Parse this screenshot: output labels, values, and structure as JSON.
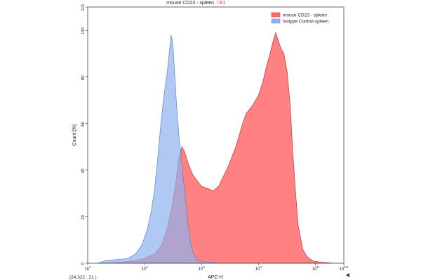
{
  "chart_data": {
    "type": "area",
    "title": "mouse CD23 - spleen",
    "title_suffix": "/ E1",
    "xlabel": "APC-H",
    "ylabel": "Count [%]",
    "x_scale": "log10",
    "xlim": [
      10,
      316228
    ],
    "ylim": [
      0,
      110
    ],
    "grid": false,
    "legend_position": "top-right",
    "x_ticks": [
      {
        "value": 10,
        "base": "10",
        "exp": "1"
      },
      {
        "value": 100,
        "base": "10",
        "exp": "2"
      },
      {
        "value": 1000,
        "base": "10",
        "exp": "3"
      },
      {
        "value": 10000,
        "base": "10",
        "exp": "4"
      },
      {
        "value": 100000,
        "base": "10",
        "exp": "5"
      },
      {
        "value": 316228,
        "base": "10",
        "exp": "5.5"
      }
    ],
    "y_ticks": [
      0,
      20,
      40,
      60,
      80,
      100,
      110
    ],
    "series": [
      {
        "name": "mouse CD23 - spleen",
        "color": "#ff6b6b",
        "x": [
          20,
          40,
          60,
          100,
          150,
          200,
          250,
          300,
          350,
          400,
          450,
          500,
          600,
          700,
          800,
          1000,
          1300,
          1600,
          2000,
          2500,
          3000,
          4000,
          5000,
          6000,
          8000,
          10000,
          12000,
          14000,
          16000,
          18000,
          20000,
          22000,
          25000,
          28000,
          32000,
          36000,
          40000,
          45000,
          50000,
          60000,
          70000,
          90000,
          120000,
          200000
        ],
        "y": [
          0,
          0.5,
          1,
          2,
          4,
          8,
          15,
          24,
          34,
          45,
          50,
          48,
          42,
          38,
          36,
          33,
          32,
          31,
          33,
          38,
          42,
          50,
          58,
          64,
          68,
          72,
          78,
          85,
          90,
          95,
          99,
          96,
          92,
          90,
          82,
          68,
          48,
          30,
          16,
          6,
          3,
          1,
          0.5,
          0
        ]
      },
      {
        "name": "Isotype Control-spleen",
        "color": "#8fb2f0",
        "x": [
          15,
          20,
          30,
          50,
          70,
          90,
          110,
          130,
          150,
          170,
          190,
          210,
          230,
          250,
          270,
          290,
          310,
          330,
          360,
          400,
          440,
          480,
          520,
          560,
          600,
          650,
          700,
          800,
          900,
          1200,
          2000
        ],
        "y": [
          0,
          1,
          1.5,
          2,
          4,
          8,
          14,
          22,
          32,
          45,
          58,
          68,
          76,
          82,
          90,
          98,
          95,
          85,
          70,
          55,
          45,
          36,
          28,
          20,
          14,
          8,
          5,
          2,
          1,
          0.5,
          0
        ]
      }
    ],
    "readout": "(24.322 : 21 )"
  }
}
